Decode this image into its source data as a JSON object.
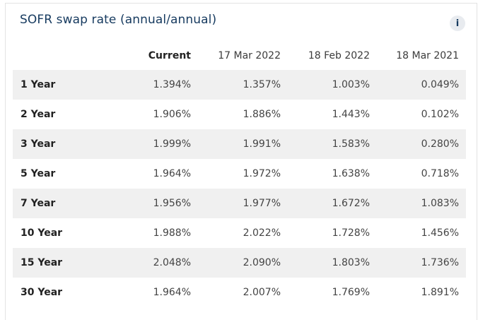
{
  "widget": {
    "title": "SOFR swap rate (annual/annual)",
    "info_label": "i"
  },
  "table": {
    "headers": [
      "",
      "Current",
      "17 Mar 2022",
      "18 Feb 2022",
      "18 Mar 2021"
    ],
    "rows": [
      {
        "tenor": "1 Year",
        "values": [
          "1.394%",
          "1.357%",
          "1.003%",
          "0.049%"
        ]
      },
      {
        "tenor": "2 Year",
        "values": [
          "1.906%",
          "1.886%",
          "1.443%",
          "0.102%"
        ]
      },
      {
        "tenor": "3 Year",
        "values": [
          "1.999%",
          "1.991%",
          "1.583%",
          "0.280%"
        ]
      },
      {
        "tenor": "5 Year",
        "values": [
          "1.964%",
          "1.972%",
          "1.638%",
          "0.718%"
        ]
      },
      {
        "tenor": "7 Year",
        "values": [
          "1.956%",
          "1.977%",
          "1.672%",
          "1.083%"
        ]
      },
      {
        "tenor": "10 Year",
        "values": [
          "1.988%",
          "2.022%",
          "1.728%",
          "1.456%"
        ]
      },
      {
        "tenor": "15 Year",
        "values": [
          "2.048%",
          "2.090%",
          "1.803%",
          "1.736%"
        ]
      },
      {
        "tenor": "30 Year",
        "values": [
          "1.964%",
          "2.007%",
          "1.769%",
          "1.891%"
        ]
      }
    ]
  },
  "colors": {
    "title": "#163a5f",
    "stripe": "#f0f0f0"
  }
}
